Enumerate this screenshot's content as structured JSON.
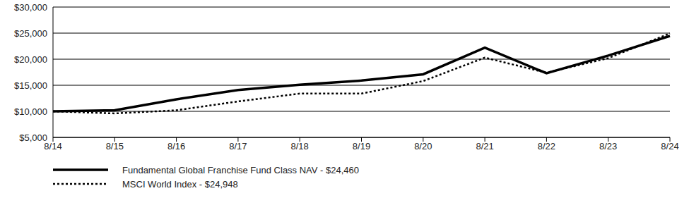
{
  "chart_data": {
    "type": "line",
    "x": [
      "8/14",
      "8/15",
      "8/16",
      "8/17",
      "8/18",
      "8/19",
      "8/20",
      "8/21",
      "8/22",
      "8/23",
      "8/24"
    ],
    "series": [
      {
        "name": "Fundamental Global Franchise Fund Class NAV - $24,460",
        "color": "#000000",
        "line_style": "solid",
        "values": [
          10000,
          10200,
          12300,
          14100,
          15100,
          15900,
          17100,
          22200,
          17300,
          20700,
          24460
        ]
      },
      {
        "name": "MSCI World Index - $24,948",
        "color": "#000000",
        "line_style": "dotted",
        "values": [
          10000,
          9600,
          10200,
          11900,
          13400,
          13400,
          15800,
          20300,
          17400,
          20200,
          24948
        ]
      }
    ],
    "ylim": [
      5000,
      30000
    ],
    "yticks": [
      {
        "value": 5000,
        "label": "$5,000"
      },
      {
        "value": 10000,
        "label": "$10,000"
      },
      {
        "value": 15000,
        "label": "$15,000"
      },
      {
        "value": 20000,
        "label": "$20,000"
      },
      {
        "value": 25000,
        "label": "$25,000"
      },
      {
        "value": 30000,
        "label": "$30,000"
      }
    ],
    "grid": true,
    "legend": "bottom-left"
  }
}
